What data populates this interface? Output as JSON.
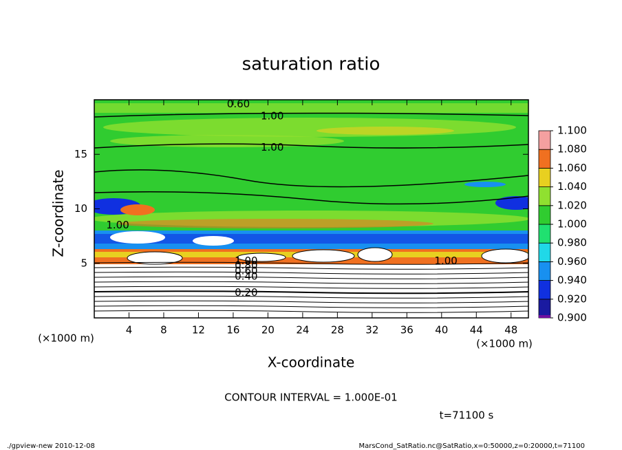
{
  "chart_data": {
    "type": "contour",
    "title": "saturation ratio",
    "x_label": "X-coordinate",
    "y_label": "Z-coordinate",
    "x_unit_left": "(×1000 m)",
    "x_unit_right": "(×1000 m)",
    "xlim": [
      0,
      50
    ],
    "ylim": [
      0,
      20
    ],
    "xticks": [
      4,
      8,
      12,
      16,
      20,
      24,
      28,
      32,
      36,
      40,
      44,
      48
    ],
    "yticks": [
      5,
      10,
      15
    ],
    "colorbar": {
      "levels": [
        {
          "value": 0.9,
          "label": "0.900"
        },
        {
          "value": 0.92,
          "label": "0.920"
        },
        {
          "value": 0.94,
          "label": "0.940"
        },
        {
          "value": 0.96,
          "label": "0.960"
        },
        {
          "value": 0.98,
          "label": "0.980"
        },
        {
          "value": 1.0,
          "label": "1.000"
        },
        {
          "value": 1.02,
          "label": "1.020"
        },
        {
          "value": 1.04,
          "label": "1.040"
        },
        {
          "value": 1.06,
          "label": "1.060"
        },
        {
          "value": 1.08,
          "label": "1.080"
        },
        {
          "value": 1.1,
          "label": "1.100"
        }
      ],
      "colors": [
        "#1a1aa0",
        "#1030e0",
        "#1890f0",
        "#20d8e8",
        "#20e070",
        "#30cc30",
        "#90e030",
        "#e8d020",
        "#f07020",
        "#f4a0a0"
      ],
      "under_color": "#7010a0"
    },
    "contour_labels": [
      {
        "text": "0.20",
        "x": 17.5,
        "z": 2.3
      },
      {
        "text": "0.40",
        "x": 17.5,
        "z": 3.8
      },
      {
        "text": "0.60",
        "x": 17.5,
        "z": 4.3
      },
      {
        "text": "0.80",
        "x": 17.5,
        "z": 4.8
      },
      {
        "text": "1.00",
        "x": 17.5,
        "z": 5.2
      },
      {
        "text": "1.00",
        "x": 20.5,
        "z": 18.5
      },
      {
        "text": "1.00",
        "x": 20.5,
        "z": 15.6
      },
      {
        "text": "1.00",
        "x": 2.7,
        "z": 8.5
      },
      {
        "text": "1.00",
        "x": 40.5,
        "z": 5.2
      },
      {
        "text": "0.60",
        "x": 16.6,
        "z": 19.6
      }
    ],
    "contour_interval": "CONTOUR INTERVAL = 1.000E-01",
    "time_label": "t=71100 s",
    "footer_left": "./gpview-new  2010-12-08",
    "footer_right": "MarsCond_SatRatio.nc@SatRatio,x=0:50000,z=0:20000,t=71100"
  }
}
